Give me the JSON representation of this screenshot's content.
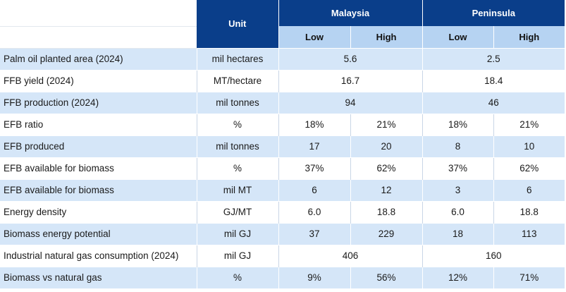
{
  "header": {
    "unit_label": "Unit",
    "groups": [
      "Malaysia",
      "Peninsula"
    ],
    "sub": [
      "Low",
      "High",
      "Low",
      "High"
    ]
  },
  "rows": [
    {
      "label": "Palm oil planted area (2024)",
      "unit": "mil hectares",
      "values": [
        "5.6",
        "2.5"
      ]
    },
    {
      "label": "FFB yield (2024)",
      "unit": "MT/hectare",
      "values": [
        "16.7",
        "18.4"
      ]
    },
    {
      "label": "FFB production (2024)",
      "unit": "mil tonnes",
      "values": [
        "94",
        "46"
      ]
    },
    {
      "label": "EFB ratio",
      "unit": "%",
      "values": [
        "18%",
        "21%",
        "18%",
        "21%"
      ]
    },
    {
      "label": "EFB produced",
      "unit": "mil tonnes",
      "values": [
        "17",
        "20",
        "8",
        "10"
      ]
    },
    {
      "label": "EFB available for biomass",
      "unit": "%",
      "values": [
        "37%",
        "62%",
        "37%",
        "62%"
      ]
    },
    {
      "label": "EFB available for biomass",
      "unit": "mil MT",
      "values": [
        "6",
        "12",
        "3",
        "6"
      ]
    },
    {
      "label": "Energy density",
      "unit": "GJ/MT",
      "values": [
        "6.0",
        "18.8",
        "6.0",
        "18.8"
      ]
    },
    {
      "label": "Biomass energy potential",
      "unit": "mil GJ",
      "values": [
        "37",
        "229",
        "18",
        "113"
      ]
    },
    {
      "label": "Industrial natural gas consumption (2024)",
      "unit": "mil GJ",
      "values": [
        "406",
        "160"
      ]
    },
    {
      "label": "Biomass vs natural gas",
      "unit": "%",
      "values": [
        "9%",
        "56%",
        "12%",
        "71%"
      ]
    }
  ]
}
